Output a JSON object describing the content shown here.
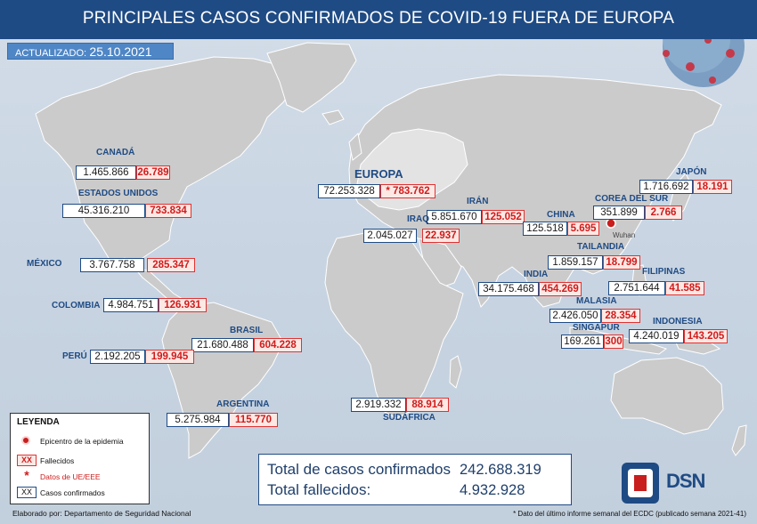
{
  "title": "PRINCIPALES CASOS CONFIRMADOS DE COVID-19 FUERA DE EUROPA",
  "updated_label": "ACTUALIZADO:",
  "updated_date": "25.10.2021",
  "countries": [
    {
      "name": "CANADÁ",
      "confirmed": "1.465.866",
      "deaths": "26.789"
    },
    {
      "name": "ESTADOS UNIDOS",
      "confirmed": "45.316.210",
      "deaths": "733.834"
    },
    {
      "name": "MÉXICO",
      "confirmed": "3.767.758",
      "deaths": "285.347"
    },
    {
      "name": "COLOMBIA",
      "confirmed": "4.984.751",
      "deaths": "126.931"
    },
    {
      "name": "BRASIL",
      "confirmed": "21.680.488",
      "deaths": "604.228"
    },
    {
      "name": "PERÚ",
      "confirmed": "2.192.205",
      "deaths": "199.945"
    },
    {
      "name": "ARGENTINA",
      "confirmed": "5.275.984",
      "deaths": "115.770"
    },
    {
      "name": "EUROPA",
      "confirmed": "72.253.328",
      "deaths": "* 783.762"
    },
    {
      "name": "IRÁN",
      "confirmed": "5.851.670",
      "deaths": "125.052"
    },
    {
      "name": "IRAQ",
      "confirmed": "2.045.027",
      "deaths": "22.937"
    },
    {
      "name": "CHINA",
      "confirmed": "125.518",
      "deaths": "5.695"
    },
    {
      "name": "COREA DEL SUR",
      "confirmed": "351.899",
      "deaths": "2.766"
    },
    {
      "name": "JAPÓN",
      "confirmed": "1.716.692",
      "deaths": "18.191"
    },
    {
      "name": "TAILANDIA",
      "confirmed": "1.859.157",
      "deaths": "18.799"
    },
    {
      "name": "INDIA",
      "confirmed": "34.175.468",
      "deaths": "454.269"
    },
    {
      "name": "FILIPINAS",
      "confirmed": "2.751.644",
      "deaths": "41.585"
    },
    {
      "name": "MALASIA",
      "confirmed": "2.426.050",
      "deaths": "28.354"
    },
    {
      "name": "SINGAPUR",
      "confirmed": "169.261",
      "deaths": "300"
    },
    {
      "name": "INDONESIA",
      "confirmed": "4.240.019",
      "deaths": "143.205"
    },
    {
      "name": "SUDÁFRICA",
      "confirmed": "2.919.332",
      "deaths": "88.914"
    }
  ],
  "wuhan_label": "Wuhan",
  "legend": {
    "title": "LEYENDA",
    "epicenter": "Epicentro de la epidemia",
    "deaths_symbol": "XX",
    "deaths": "Fallecidos",
    "eu_symbol": "*",
    "eu": "Datos de UE/EEE",
    "confirmed_symbol": "XX",
    "confirmed": "Casos confirmados"
  },
  "totals": {
    "confirmed_label": "Total de casos confirmados",
    "confirmed_value": "242.688.319",
    "deaths_label": "Total fallecidos:",
    "deaths_value": "4.932.928"
  },
  "footer_left": "Elaborado por: Departamento de Seguridad Nacional",
  "footer_right": "* Dato del último informe semanal del ECDC (publicado semana 2021-41)",
  "logo_text": "DSN",
  "colors": {
    "header": "#1f4b84",
    "land": "#c9c9c9",
    "deaths_text": "#d01c1c",
    "epicenter": "#c81e1e"
  }
}
